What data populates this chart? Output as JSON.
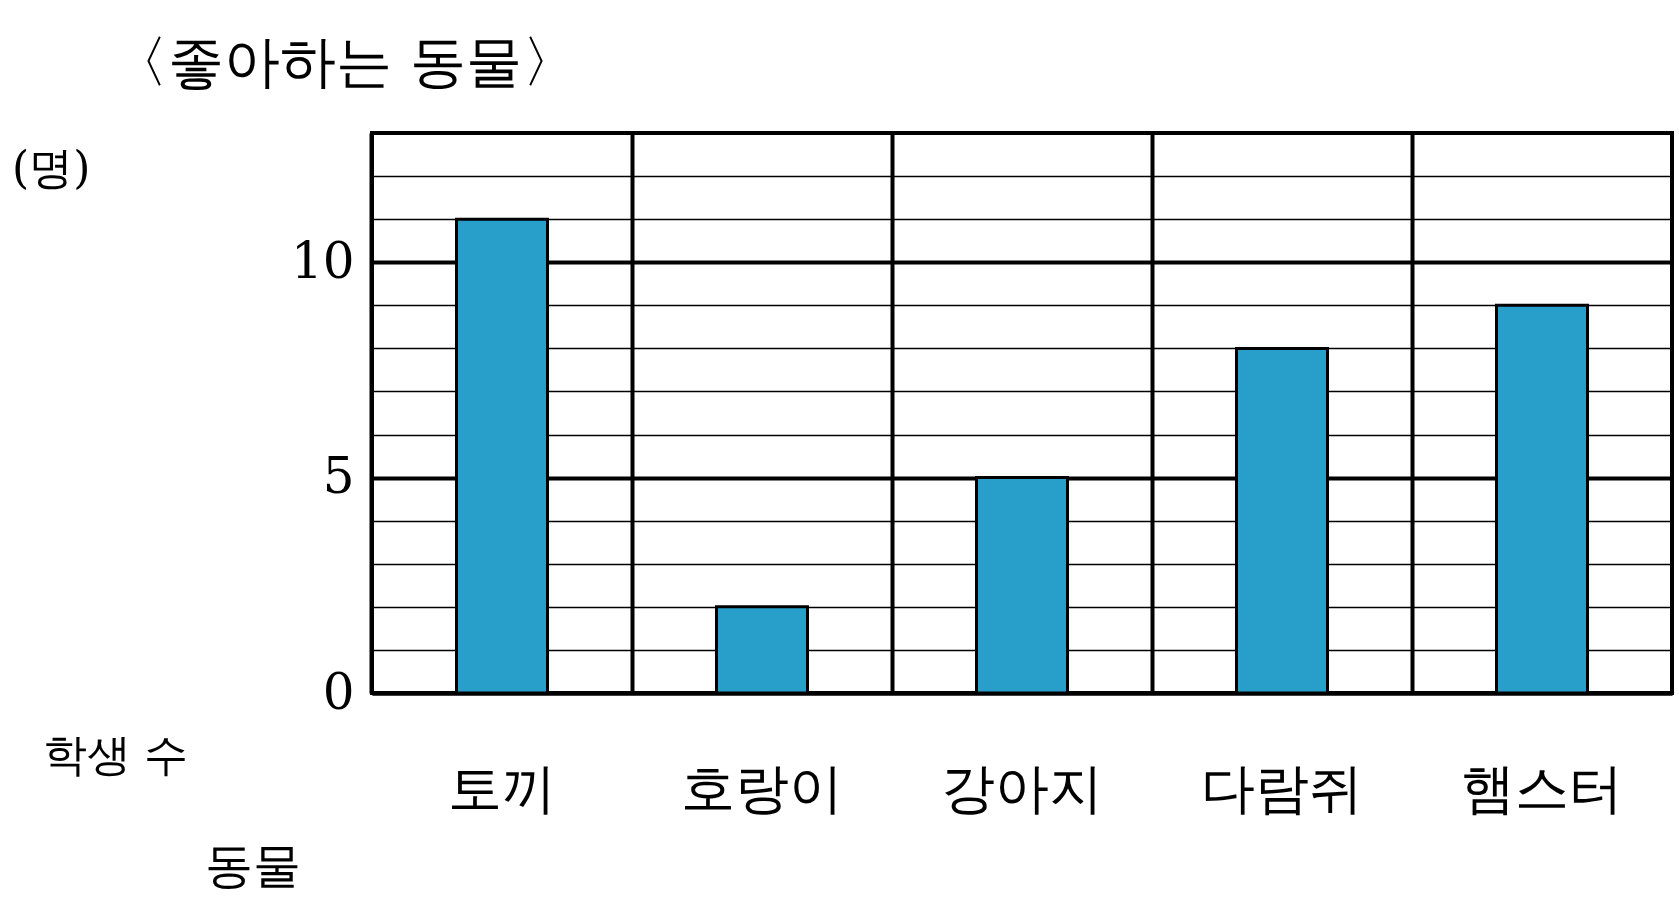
{
  "chart_data": {
    "type": "bar",
    "title": "〈좋아하는 동물〉",
    "xlabel": "동물",
    "ylabel": "학생 수",
    "annotations": [
      "(명)"
    ],
    "categories": [
      "토끼",
      "호랑이",
      "강아지",
      "다람쥐",
      "햄스터"
    ],
    "values": [
      11,
      2,
      5,
      8,
      9
    ],
    "color": "#279fca",
    "ylim": [
      0,
      13
    ],
    "yticks": [
      0,
      {
        "value": 1,
        "label": null
      },
      {
        "value": 2,
        "label": null
      },
      {
        "value": 3,
        "label": null
      },
      {
        "value": 4,
        "label": null
      },
      5,
      {
        "value": 6,
        "label": null
      },
      {
        "value": 7,
        "label": null
      },
      {
        "value": 8,
        "label": null
      },
      {
        "value": 9,
        "label": null
      },
      10,
      {
        "value": 11,
        "label": null
      },
      {
        "value": 12,
        "label": null
      },
      {
        "value": 13,
        "label": null
      }
    ],
    "grid": true
  }
}
